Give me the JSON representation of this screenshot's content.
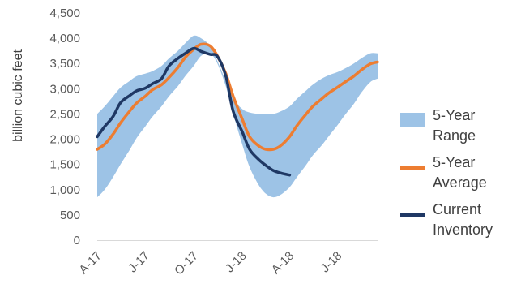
{
  "chart_data": {
    "type": "area",
    "title": "",
    "xlabel": "",
    "ylabel": "billion cubic feet",
    "ylim": [
      0,
      4500
    ],
    "yticks": [
      "0",
      "500",
      "1,000",
      "1,500",
      "2,000",
      "2,500",
      "3,000",
      "3,500",
      "4,000",
      "4,500"
    ],
    "x_tick_labels": [
      "A-17",
      "J-17",
      "O-17",
      "J-18",
      "A-18",
      "J-18"
    ],
    "x_tick_dates": [
      "2017-04-01",
      "2017-07-01",
      "2017-10-01",
      "2018-01-01",
      "2018-04-01",
      "2018-07-01"
    ],
    "x_range": [
      "2017-04-01",
      "2018-09-15"
    ],
    "grid": false,
    "legend_position": "right",
    "series": [
      {
        "name": "5-Year Range",
        "kind": "band",
        "color": "#9dc3e6",
        "x": [
          "2017-04-01",
          "2017-04-15",
          "2017-05-01",
          "2017-05-15",
          "2017-06-01",
          "2017-06-15",
          "2017-07-01",
          "2017-07-15",
          "2017-08-01",
          "2017-08-15",
          "2017-09-01",
          "2017-09-15",
          "2017-10-01",
          "2017-10-15",
          "2017-11-01",
          "2017-11-15",
          "2017-12-01",
          "2017-12-15",
          "2018-01-01",
          "2018-01-15",
          "2018-02-01",
          "2018-02-15",
          "2018-03-01",
          "2018-03-15",
          "2018-04-01",
          "2018-04-15",
          "2018-05-01",
          "2018-05-15",
          "2018-06-01",
          "2018-06-15",
          "2018-07-01",
          "2018-07-15",
          "2018-08-01",
          "2018-08-15",
          "2018-09-01",
          "2018-09-15"
        ],
        "low": [
          850,
          1000,
          1250,
          1500,
          1780,
          2030,
          2250,
          2450,
          2650,
          2850,
          3050,
          3250,
          3450,
          3650,
          3700,
          3500,
          3050,
          2500,
          1900,
          1450,
          1100,
          920,
          850,
          900,
          1050,
          1250,
          1470,
          1680,
          1880,
          2070,
          2280,
          2480,
          2700,
          2920,
          3130,
          3200
        ],
        "high": [
          2500,
          2650,
          2850,
          3020,
          3150,
          3250,
          3300,
          3350,
          3450,
          3600,
          3750,
          3900,
          4050,
          4000,
          3850,
          3550,
          3150,
          2800,
          2600,
          2530,
          2500,
          2500,
          2500,
          2550,
          2650,
          2800,
          2950,
          3080,
          3200,
          3270,
          3330,
          3400,
          3500,
          3600,
          3700,
          3700
        ]
      },
      {
        "name": "5-Year Average",
        "kind": "line",
        "color": "#ed7d31",
        "x": [
          "2017-04-01",
          "2017-04-15",
          "2017-05-01",
          "2017-05-15",
          "2017-06-01",
          "2017-06-15",
          "2017-07-01",
          "2017-07-15",
          "2017-08-01",
          "2017-08-15",
          "2017-09-01",
          "2017-09-15",
          "2017-10-01",
          "2017-10-15",
          "2017-11-01",
          "2017-11-15",
          "2017-12-01",
          "2017-12-15",
          "2018-01-01",
          "2018-01-15",
          "2018-02-01",
          "2018-02-15",
          "2018-03-01",
          "2018-03-15",
          "2018-04-01",
          "2018-04-15",
          "2018-05-01",
          "2018-05-15",
          "2018-06-01",
          "2018-06-15",
          "2018-07-01",
          "2018-07-15",
          "2018-08-01",
          "2018-08-15",
          "2018-09-01",
          "2018-09-15"
        ],
        "values": [
          1800,
          1900,
          2100,
          2320,
          2550,
          2720,
          2850,
          2980,
          3080,
          3220,
          3420,
          3620,
          3780,
          3880,
          3850,
          3650,
          3300,
          2850,
          2400,
          2050,
          1870,
          1800,
          1800,
          1870,
          2050,
          2270,
          2480,
          2650,
          2800,
          2920,
          3030,
          3130,
          3250,
          3370,
          3490,
          3530
        ]
      },
      {
        "name": "Current Inventory",
        "kind": "line",
        "color": "#1f3864",
        "x": [
          "2017-04-01",
          "2017-04-15",
          "2017-05-01",
          "2017-05-15",
          "2017-06-01",
          "2017-06-15",
          "2017-07-01",
          "2017-07-15",
          "2017-08-01",
          "2017-08-15",
          "2017-09-01",
          "2017-09-15",
          "2017-10-01",
          "2017-10-15",
          "2017-11-01",
          "2017-11-15",
          "2017-12-01",
          "2017-12-15",
          "2018-01-01",
          "2018-01-15",
          "2018-02-01",
          "2018-02-15",
          "2018-03-01",
          "2018-03-15",
          "2018-04-01"
        ],
        "values": [
          2050,
          2250,
          2450,
          2720,
          2860,
          2960,
          3010,
          3100,
          3200,
          3450,
          3600,
          3700,
          3800,
          3740,
          3680,
          3640,
          3250,
          2550,
          2150,
          1800,
          1600,
          1480,
          1380,
          1330,
          1290
        ]
      }
    ]
  }
}
